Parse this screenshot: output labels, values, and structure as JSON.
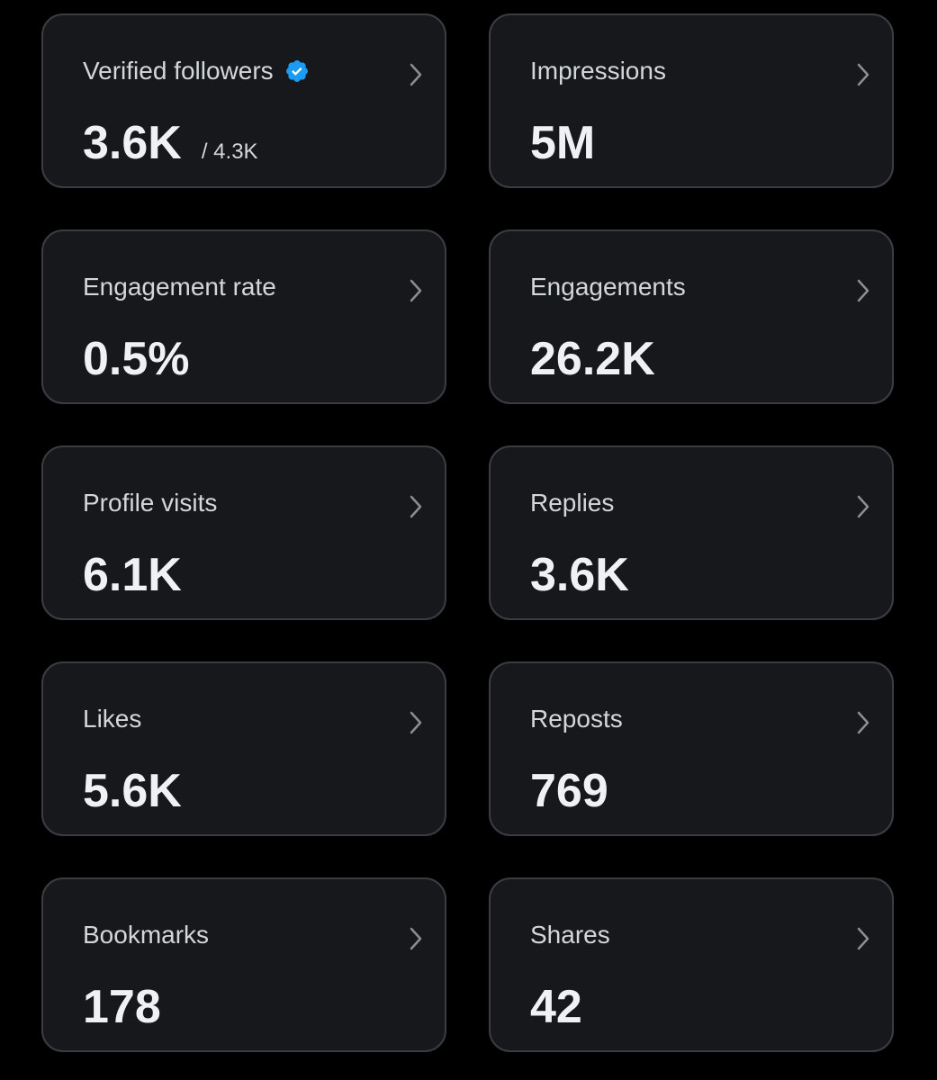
{
  "cards": [
    {
      "label": "Verified followers",
      "value": "3.6K",
      "sub": "/ 4.3K",
      "verified": true
    },
    {
      "label": "Impressions",
      "value": "5M"
    },
    {
      "label": "Engagement rate",
      "value": "0.5%"
    },
    {
      "label": "Engagements",
      "value": "26.2K"
    },
    {
      "label": "Profile visits",
      "value": "6.1K"
    },
    {
      "label": "Replies",
      "value": "3.6K"
    },
    {
      "label": "Likes",
      "value": "5.6K"
    },
    {
      "label": "Reposts",
      "value": "769"
    },
    {
      "label": "Bookmarks",
      "value": "178"
    },
    {
      "label": "Shares",
      "value": "42"
    }
  ]
}
